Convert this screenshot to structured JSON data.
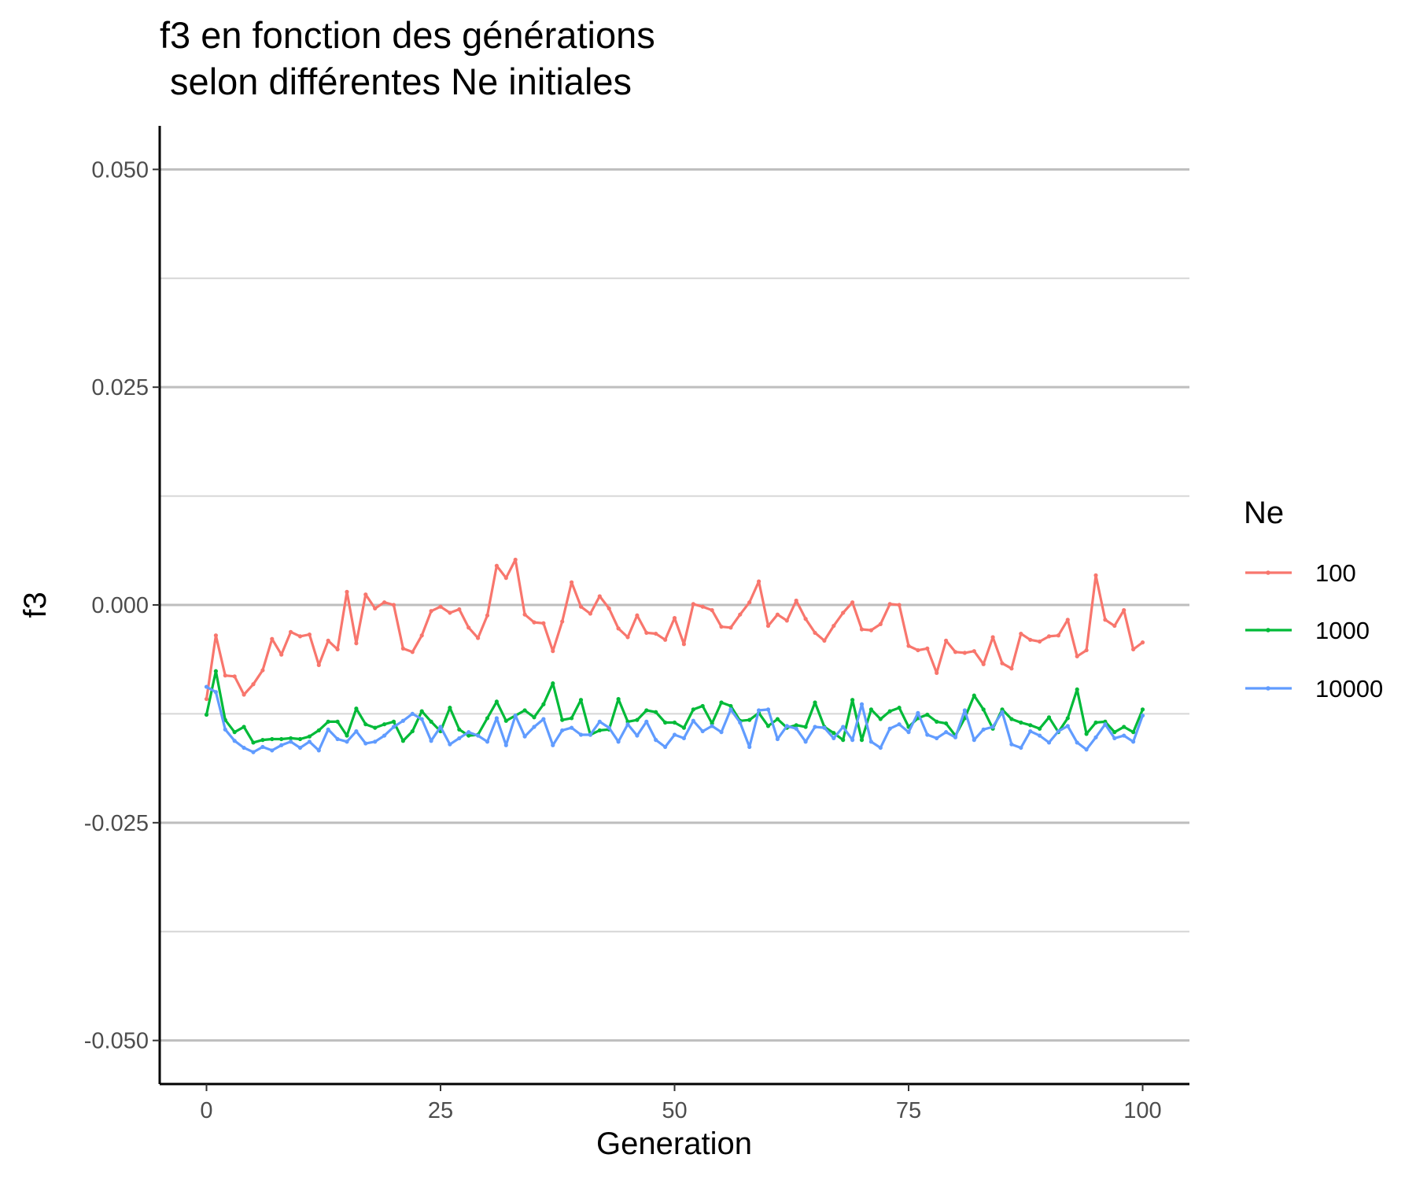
{
  "chart_data": {
    "type": "line",
    "title_line1": "f3 en fonction des générations",
    "title_line2": " selon différentes Ne initiales",
    "xlabel": "Generation",
    "ylabel": "f3",
    "xlim": [
      -5,
      105
    ],
    "ylim": [
      -0.055,
      0.055
    ],
    "x_ticks": [
      0,
      25,
      50,
      75,
      100
    ],
    "x_tick_labels": [
      "0",
      "25",
      "50",
      "75",
      "100"
    ],
    "y_ticks": [
      0.05,
      0.025,
      0.0,
      -0.025,
      -0.05
    ],
    "y_tick_labels": [
      "0.050",
      "0.025",
      "0.000",
      "-0.025",
      "-0.050"
    ],
    "y_minor_ticks": [
      0.0375,
      0.0125,
      -0.0125,
      -0.0375
    ],
    "grid": "horizontal",
    "legend_title": "Ne",
    "legend_position": "right",
    "x": [
      0,
      1,
      2,
      3,
      4,
      5,
      6,
      7,
      8,
      9,
      10,
      11,
      12,
      13,
      14,
      15,
      16,
      17,
      18,
      19,
      20,
      21,
      22,
      23,
      24,
      25,
      26,
      27,
      28,
      29,
      30,
      31,
      32,
      33,
      34,
      35,
      36,
      37,
      38,
      39,
      40,
      41,
      42,
      43,
      44,
      45,
      46,
      47,
      48,
      49,
      50,
      51,
      52,
      53,
      54,
      55,
      56,
      57,
      58,
      59,
      60,
      61,
      62,
      63,
      64,
      65,
      66,
      67,
      68,
      69,
      70,
      71,
      72,
      73,
      74,
      75,
      76,
      77,
      78,
      79,
      80,
      81,
      82,
      83,
      84,
      85,
      86,
      87,
      88,
      89,
      90,
      91,
      92,
      93,
      94,
      95,
      96,
      97,
      98,
      99,
      100
    ],
    "series": [
      {
        "name": "100",
        "color": "#F8766D",
        "values": [
          -0.0108,
          -0.0035,
          -0.0081,
          -0.0082,
          -0.0103,
          -0.0091,
          -0.0075,
          -0.0039,
          -0.0057,
          -0.0031,
          -0.0036,
          -0.0034,
          -0.0069,
          -0.0041,
          -0.0051,
          0.0015,
          -0.0044,
          0.0012,
          -0.0004,
          0.0003,
          0.0,
          -0.005,
          -0.0054,
          -0.0035,
          -0.0007,
          -0.0002,
          -0.0009,
          -0.0005,
          -0.0026,
          -0.0038,
          -0.0012,
          0.0045,
          0.0031,
          0.0052,
          -0.0011,
          -0.002,
          -0.0021,
          -0.0053,
          -0.0019,
          0.0026,
          -0.0002,
          -0.001,
          0.001,
          -0.0004,
          -0.0027,
          -0.0037,
          -0.0012,
          -0.0032,
          -0.0033,
          -0.004,
          -0.0015,
          -0.0045,
          0.0001,
          -0.0002,
          -0.0006,
          -0.0025,
          -0.0026,
          -0.0011,
          0.0003,
          0.0027,
          -0.0024,
          -0.0011,
          -0.0018,
          0.0005,
          -0.0016,
          -0.0032,
          -0.0041,
          -0.0024,
          -0.0009,
          0.0003,
          -0.0028,
          -0.0029,
          -0.0022,
          0.0001,
          0.0,
          -0.0047,
          -0.0052,
          -0.005,
          -0.0078,
          -0.0041,
          -0.0054,
          -0.0055,
          -0.0053,
          -0.0068,
          -0.0037,
          -0.0067,
          -0.0073,
          -0.0033,
          -0.004,
          -0.0042,
          -0.0036,
          -0.0035,
          -0.0017,
          -0.0059,
          -0.0052,
          0.0034,
          -0.0017,
          -0.0024,
          -0.0006,
          -0.0051,
          -0.0043
        ]
      },
      {
        "name": "1000",
        "color": "#00BA38",
        "values": [
          -0.0126,
          -0.0076,
          -0.0132,
          -0.0146,
          -0.014,
          -0.0158,
          -0.0155,
          -0.0154,
          -0.0154,
          -0.0153,
          -0.0154,
          -0.0151,
          -0.0144,
          -0.0134,
          -0.0134,
          -0.015,
          -0.0119,
          -0.0137,
          -0.0141,
          -0.0137,
          -0.0134,
          -0.0156,
          -0.0145,
          -0.0122,
          -0.0134,
          -0.0145,
          -0.0118,
          -0.0143,
          -0.015,
          -0.0149,
          -0.013,
          -0.0111,
          -0.0133,
          -0.0127,
          -0.0121,
          -0.0129,
          -0.0114,
          -0.009,
          -0.0132,
          -0.013,
          -0.0109,
          -0.0149,
          -0.0144,
          -0.0143,
          -0.0108,
          -0.0134,
          -0.0132,
          -0.0121,
          -0.0123,
          -0.0135,
          -0.0135,
          -0.0141,
          -0.012,
          -0.0116,
          -0.0136,
          -0.0112,
          -0.0116,
          -0.0133,
          -0.0132,
          -0.0124,
          -0.0139,
          -0.0131,
          -0.0141,
          -0.0138,
          -0.014,
          -0.0112,
          -0.014,
          -0.0147,
          -0.0155,
          -0.0109,
          -0.0155,
          -0.012,
          -0.0131,
          -0.0122,
          -0.0118,
          -0.014,
          -0.013,
          -0.0126,
          -0.0134,
          -0.0136,
          -0.015,
          -0.013,
          -0.0104,
          -0.012,
          -0.0142,
          -0.012,
          -0.0131,
          -0.0135,
          -0.0138,
          -0.0142,
          -0.0129,
          -0.0146,
          -0.013,
          -0.0097,
          -0.0148,
          -0.0135,
          -0.0134,
          -0.0146,
          -0.014,
          -0.0146,
          -0.012
        ]
      },
      {
        "name": "10000",
        "color": "#619CFF",
        "values": [
          -0.0094,
          -0.01,
          -0.0143,
          -0.0156,
          -0.0164,
          -0.0169,
          -0.0163,
          -0.0167,
          -0.0161,
          -0.0157,
          -0.0164,
          -0.0157,
          -0.0167,
          -0.0143,
          -0.0154,
          -0.0157,
          -0.0145,
          -0.0159,
          -0.0157,
          -0.015,
          -0.014,
          -0.0133,
          -0.0125,
          -0.0131,
          -0.0156,
          -0.014,
          -0.016,
          -0.0153,
          -0.0146,
          -0.015,
          -0.0157,
          -0.013,
          -0.0161,
          -0.0127,
          -0.0151,
          -0.014,
          -0.0131,
          -0.0161,
          -0.0144,
          -0.0141,
          -0.0149,
          -0.0149,
          -0.0134,
          -0.0141,
          -0.0157,
          -0.0137,
          -0.015,
          -0.0134,
          -0.0155,
          -0.0163,
          -0.0149,
          -0.0153,
          -0.0133,
          -0.0145,
          -0.0139,
          -0.0146,
          -0.012,
          -0.0135,
          -0.0163,
          -0.0121,
          -0.012,
          -0.0154,
          -0.0139,
          -0.0142,
          -0.0157,
          -0.014,
          -0.0141,
          -0.0153,
          -0.014,
          -0.0155,
          -0.0114,
          -0.0157,
          -0.0164,
          -0.0142,
          -0.0137,
          -0.0146,
          -0.0124,
          -0.0149,
          -0.0153,
          -0.0146,
          -0.0152,
          -0.0121,
          -0.0155,
          -0.0143,
          -0.014,
          -0.0123,
          -0.016,
          -0.0164,
          -0.0145,
          -0.015,
          -0.0158,
          -0.0145,
          -0.0139,
          -0.0158,
          -0.0166,
          -0.0152,
          -0.0137,
          -0.0153,
          -0.015,
          -0.0157,
          -0.0127
        ]
      }
    ]
  }
}
